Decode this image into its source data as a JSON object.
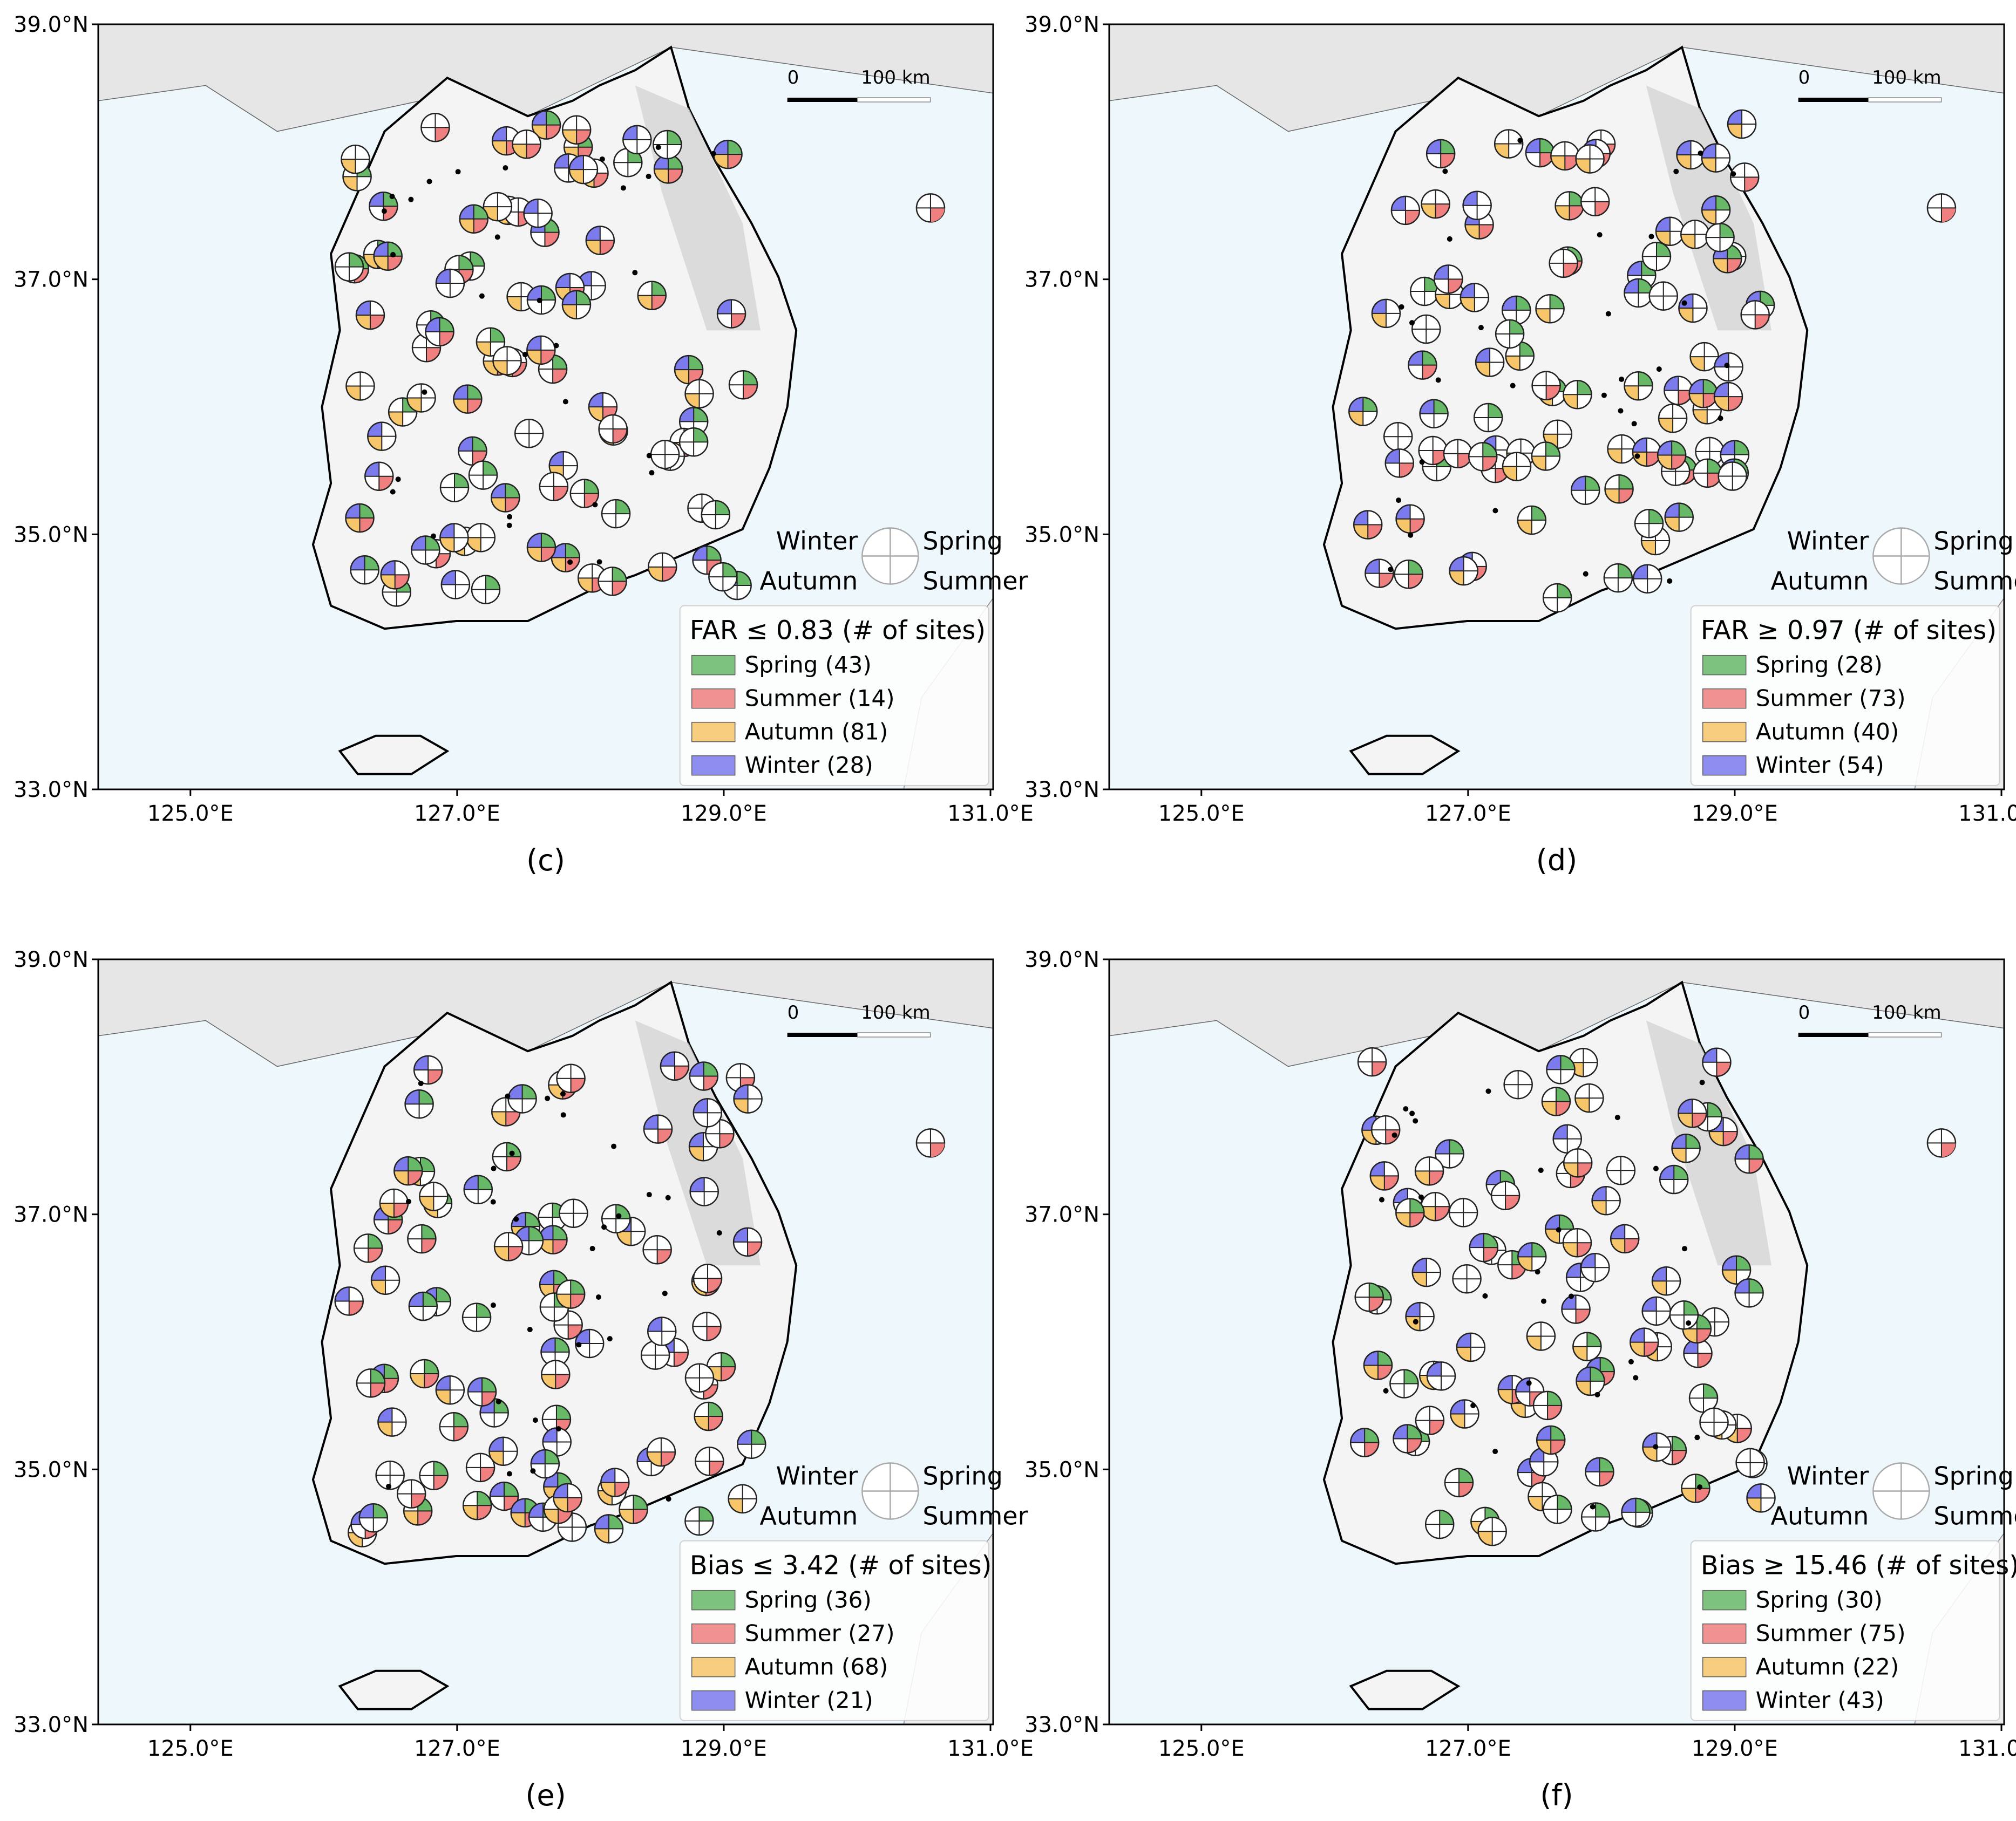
{
  "axes": {
    "y_ticks": [
      "39.0°N",
      "37.0°N",
      "35.0°N",
      "33.0°N"
    ],
    "x_ticks": [
      "125.0°E",
      "127.0°E",
      "129.0°E",
      "131.0°E"
    ]
  },
  "scalebar": {
    "start": "0",
    "end": "100 km"
  },
  "key": {
    "winter": "Winter",
    "spring": "Spring",
    "autumn": "Autumn",
    "summer": "Summer"
  },
  "colors": {
    "spring": "#67b867",
    "summer": "#f08080",
    "autumn": "#f7c66b",
    "winter": "#7b7bee",
    "sea": "#eef7fb",
    "land": "#f4f4f4"
  },
  "panels": [
    {
      "label": "(c)",
      "legend_title": "FAR ≤ 0.83 (# of sites)",
      "legend": [
        {
          "season": "spring",
          "label": "Spring (43)"
        },
        {
          "season": "summer",
          "label": "Summer (14)"
        },
        {
          "season": "autumn",
          "label": "Autumn (81)"
        },
        {
          "season": "winter",
          "label": "Winter (28)"
        }
      ]
    },
    {
      "label": "(d)",
      "legend_title": "FAR ≥ 0.97 (# of sites)",
      "legend": [
        {
          "season": "spring",
          "label": "Spring (28)"
        },
        {
          "season": "summer",
          "label": "Summer (73)"
        },
        {
          "season": "autumn",
          "label": "Autumn (40)"
        },
        {
          "season": "winter",
          "label": "Winter (54)"
        }
      ]
    },
    {
      "label": "(e)",
      "legend_title": "Bias ≤ 3.42 (# of sites)",
      "legend": [
        {
          "season": "spring",
          "label": "Spring (36)"
        },
        {
          "season": "summer",
          "label": "Summer (27)"
        },
        {
          "season": "autumn",
          "label": "Autumn (68)"
        },
        {
          "season": "winter",
          "label": "Winter (21)"
        }
      ]
    },
    {
      "label": "(f)",
      "legend_title": "Bias ≥ 15.46 (# of sites)",
      "legend": [
        {
          "season": "spring",
          "label": "Spring (30)"
        },
        {
          "season": "summer",
          "label": "Summer (75)"
        },
        {
          "season": "autumn",
          "label": "Autumn (22)"
        },
        {
          "season": "winter",
          "label": "Winter (43)"
        }
      ]
    }
  ]
}
